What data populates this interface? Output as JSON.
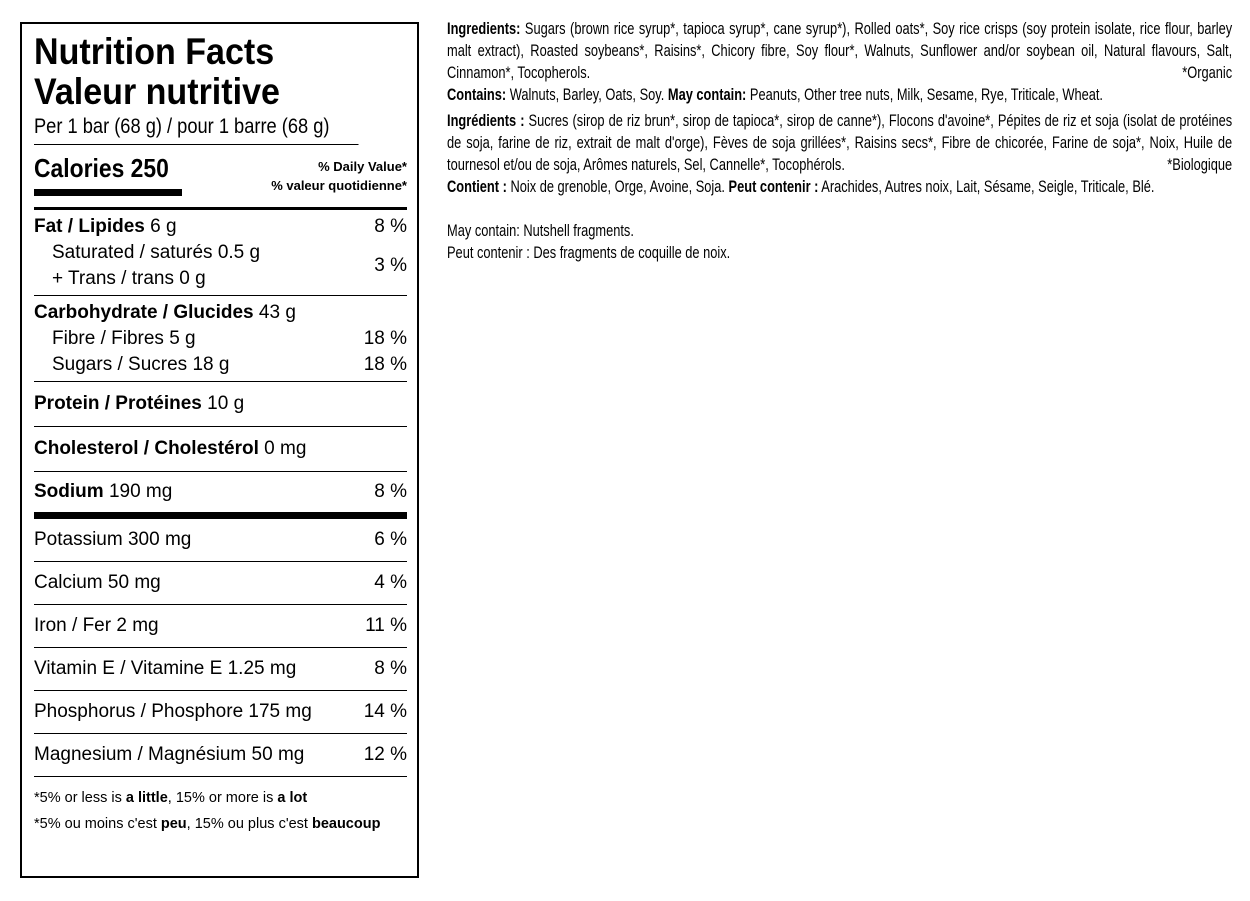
{
  "label": {
    "title_en": "Nutrition Facts",
    "title_fr": "Valeur nutritive",
    "serving": "Per 1 bar (68 g) / pour 1 barre (68 g)",
    "calories_label": "Calories 250",
    "dv_en": "% Daily Value*",
    "dv_fr": "% valeur quotidienne*",
    "fat": {
      "name": "Fat / Lipides",
      "amount": "6 g",
      "dv": "8 %"
    },
    "saturated": {
      "name": "Saturated / saturés 0.5 g"
    },
    "trans": {
      "name": "+ Trans / trans 0 g"
    },
    "sat_trans_dv": "3 %",
    "carb": {
      "name": "Carbohydrate / Glucides",
      "amount": "43 g"
    },
    "fibre": {
      "name": "Fibre / Fibres 5 g",
      "dv": "18 %"
    },
    "sugars": {
      "name": "Sugars / Sucres 18 g",
      "dv": "18 %"
    },
    "protein": {
      "name": "Protein / Protéines",
      "amount": "10 g"
    },
    "cholesterol": {
      "name": "Cholesterol / Cholestérol",
      "amount": "0 mg"
    },
    "sodium": {
      "name": "Sodium",
      "amount": "190 mg",
      "dv": "8 %"
    },
    "minerals": [
      {
        "name": "Potassium 300 mg",
        "dv": "6 %"
      },
      {
        "name": "Calcium 50 mg",
        "dv": "4 %"
      },
      {
        "name": "Iron / Fer 2 mg",
        "dv": "11 %"
      },
      {
        "name": "Vitamin E / Vitamine E 1.25 mg",
        "dv": "8 %"
      },
      {
        "name": "Phosphorus / Phosphore 175 mg",
        "dv": "14 %"
      },
      {
        "name": "Magnesium / Magnésium 50 mg",
        "dv": "12 %"
      }
    ],
    "foot_en": {
      "a": "*5% or less is ",
      "b": "a little",
      "c": ", 15% or more is ",
      "d": "a lot"
    },
    "foot_fr": {
      "a": "*5% ou moins c'est ",
      "b": "peu",
      "c": ", 15% ou plus c'est ",
      "d": "beaucoup"
    }
  },
  "ingredients": {
    "en_label": "Ingredients:",
    "en_text": " Sugars (brown rice syrup*, tapioca syrup*, cane syrup*), Rolled oats*, Soy rice crisps (soy protein isolate, rice flour, barley malt extract), Roasted soybeans*, Raisins*, Chicory fibre, Soy flour*, Walnuts, Sunflower and/or soybean oil, Natural flavours, Salt, Cinnamon*, Tocopherols.",
    "en_organic": "*Organic",
    "contains_label": "Contains:",
    "contains_text": " Walnuts, Barley, Oats, Soy. ",
    "may_label": "May contain:",
    "may_text": " Peanuts, Other tree nuts, Milk, Sesame, Rye, Triticale, Wheat.",
    "fr_label": "Ingrédients :",
    "fr_text": " Sucres (sirop de riz brun*, sirop de tapioca*, sirop de canne*), Flocons d'avoine*, Pépites de riz et soja (isolat de protéines de soja, farine de riz, extrait de malt d'orge), Fèves de soja grillées*, Raisins secs*, Fibre de chicorée, Farine de soja*, Noix, Huile de tournesol et/ou de soja, Arômes naturels, Sel, Cannelle*, Tocophérols.",
    "fr_organic": "*Biologique",
    "contient_label": "Contient :",
    "contient_text": " Noix de grenoble, Orge, Avoine, Soja. ",
    "peut_label": "Peut contenir :",
    "peut_text": " Arachides, Autres noix, Lait, Sésame, Seigle, Triticale, Blé.",
    "nutshell_en": "May contain: Nutshell fragments.",
    "nutshell_fr": "Peut contenir : Des fragments de coquille de noix."
  }
}
